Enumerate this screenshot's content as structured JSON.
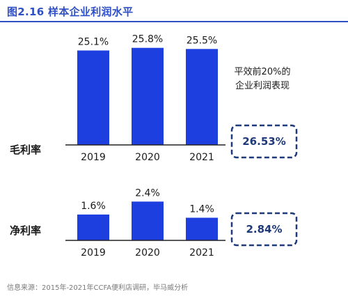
{
  "header": {
    "title": "图2.16 样本企业利润水平"
  },
  "colors": {
    "bar": "#1e3fe0",
    "title": "#2f4fc4",
    "dashed_box": "#1f3a7a",
    "axis": "#222222"
  },
  "chart_data": [
    {
      "type": "bar",
      "row_label": "毛利率",
      "categories": [
        "2019",
        "2020",
        "2021"
      ],
      "values": [
        25.1,
        25.8,
        25.5
      ],
      "value_labels": [
        "25.1%",
        "25.8%",
        "25.5%"
      ],
      "benchmark_note": [
        "平效前20%的",
        "企业利润表现"
      ],
      "benchmark_value": "26.53%"
    },
    {
      "type": "bar",
      "row_label": "净利率",
      "categories": [
        "2019",
        "2020",
        "2021"
      ],
      "values": [
        1.6,
        2.4,
        1.4
      ],
      "value_labels": [
        "1.6%",
        "2.4%",
        "1.4%"
      ],
      "benchmark_value": "2.84%"
    }
  ],
  "footer": {
    "source": "信息来源：2015年-2021年CCFA便利店调研，毕马威分析"
  }
}
